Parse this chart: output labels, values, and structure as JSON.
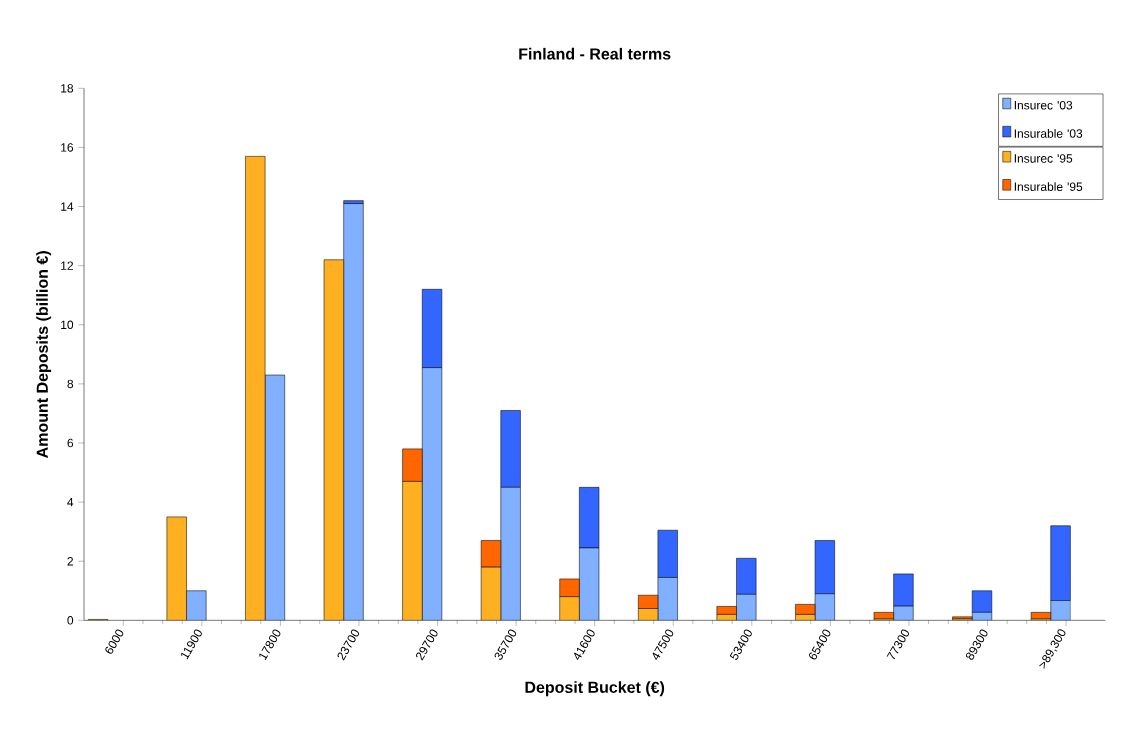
{
  "chart_data": [
    {
      "type": "bar",
      "title": "Finland - Real terms",
      "xlabel": "Deposit Bucket (€)",
      "ylabel": "Amount Deposits (billion €)",
      "categories": [
        "6000",
        "11900",
        "17800",
        "23700",
        "29700",
        "35700",
        "41600",
        "47500",
        "53400",
        "65400",
        "77300",
        "89300",
        ">89,300"
      ],
      "stacked": true,
      "series": [
        {
          "name": "Insurec '03",
          "color": "#80b0ff",
          "values": [
            0,
            1.0,
            8.3,
            14.1,
            8.55,
            4.5,
            2.45,
            1.45,
            0.88,
            0.9,
            0.48,
            0.27,
            0.67
          ]
        },
        {
          "name": "Insurable '03",
          "color": "#3366ff",
          "values": [
            0,
            0,
            0,
            0.1,
            2.65,
            2.6,
            2.05,
            1.6,
            1.22,
            1.8,
            1.09,
            0.73,
            2.53
          ]
        }
      ],
      "ylim": [
        0,
        18
      ],
      "yticks": [
        0,
        2,
        4,
        6,
        8,
        10,
        12,
        14,
        16,
        18
      ],
      "legend": "top right",
      "grid": false
    },
    {
      "type": "bar",
      "categories": [
        null,
        null,
        null,
        null,
        null,
        null,
        null,
        null,
        null,
        null,
        null,
        null,
        null
      ],
      "stacked": true,
      "series": [
        {
          "name": "Insurec '95",
          "color": "#ffb020",
          "values": [
            0.03,
            3.5,
            15.7,
            12.2,
            4.7,
            1.8,
            0.8,
            0.4,
            0.2,
            0.2,
            0.05,
            0.05,
            0.05
          ]
        },
        {
          "name": "Insurable '95",
          "color": "#ff6600",
          "values": [
            0,
            0,
            0,
            0,
            1.1,
            0.9,
            0.6,
            0.45,
            0.27,
            0.34,
            0.22,
            0.07,
            0.22
          ]
        }
      ],
      "ylim": [
        0,
        18
      ],
      "tick_labels": false,
      "legend": "top right",
      "grid": false
    }
  ]
}
